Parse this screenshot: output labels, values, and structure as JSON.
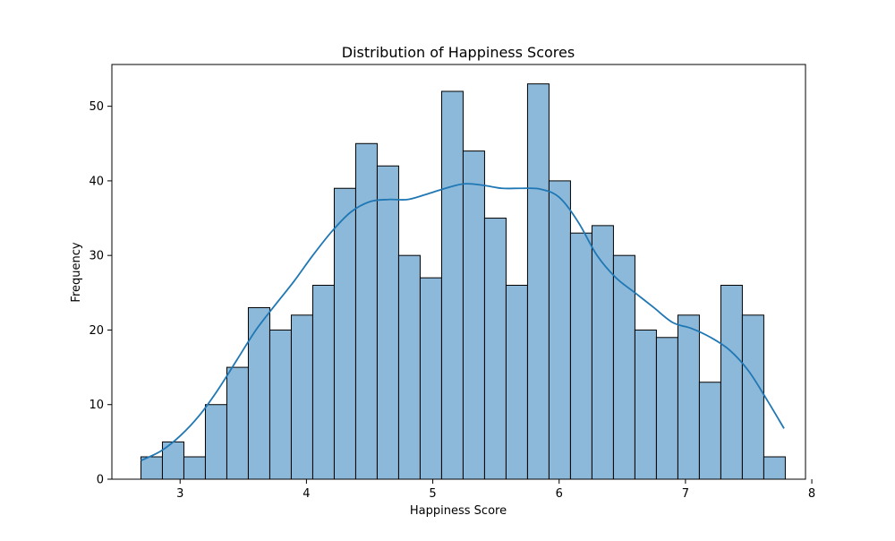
{
  "chart_data": {
    "type": "bar",
    "title": "Distribution of Happiness Scores",
    "xlabel": "Happiness Score",
    "ylabel": "Frequency",
    "xlim": [
      2.46,
      7.95
    ],
    "ylim": [
      0,
      55.6
    ],
    "x_ticks": [
      3,
      4,
      5,
      6,
      7,
      8
    ],
    "y_ticks": [
      0,
      10,
      20,
      30,
      40,
      50
    ],
    "bins": {
      "start": 2.69,
      "width": 0.17,
      "counts": [
        3,
        5,
        3,
        10,
        15,
        23,
        20,
        22,
        26,
        39,
        45,
        42,
        30,
        27,
        52,
        44,
        35,
        26,
        53,
        40,
        33,
        34,
        30,
        20,
        19,
        22,
        13,
        26,
        22,
        3
      ]
    },
    "kde": {
      "x": [
        2.69,
        2.85,
        3.0,
        3.15,
        3.3,
        3.45,
        3.6,
        3.75,
        3.9,
        4.05,
        4.2,
        4.35,
        4.5,
        4.65,
        4.8,
        4.95,
        5.1,
        5.25,
        5.4,
        5.55,
        5.7,
        5.85,
        6.0,
        6.15,
        6.3,
        6.45,
        6.6,
        6.75,
        6.9,
        7.05,
        7.2,
        7.35,
        7.5,
        7.65,
        7.78
      ],
      "y": [
        2.5,
        3.8,
        5.8,
        8.5,
        12.0,
        16.0,
        20.0,
        23.3,
        26.5,
        30.0,
        33.2,
        35.8,
        37.2,
        37.5,
        37.5,
        38.2,
        39.0,
        39.6,
        39.4,
        39.0,
        39.0,
        38.9,
        37.8,
        34.5,
        30.0,
        27.0,
        25.0,
        23.0,
        21.0,
        20.2,
        19.0,
        17.3,
        14.5,
        10.5,
        6.8
      ]
    },
    "grid": false,
    "colors": {
      "bar_fill": "#8cb9da",
      "bar_edge": "#000000",
      "kde_line": "#1f77b4",
      "axis": "#000000"
    }
  }
}
